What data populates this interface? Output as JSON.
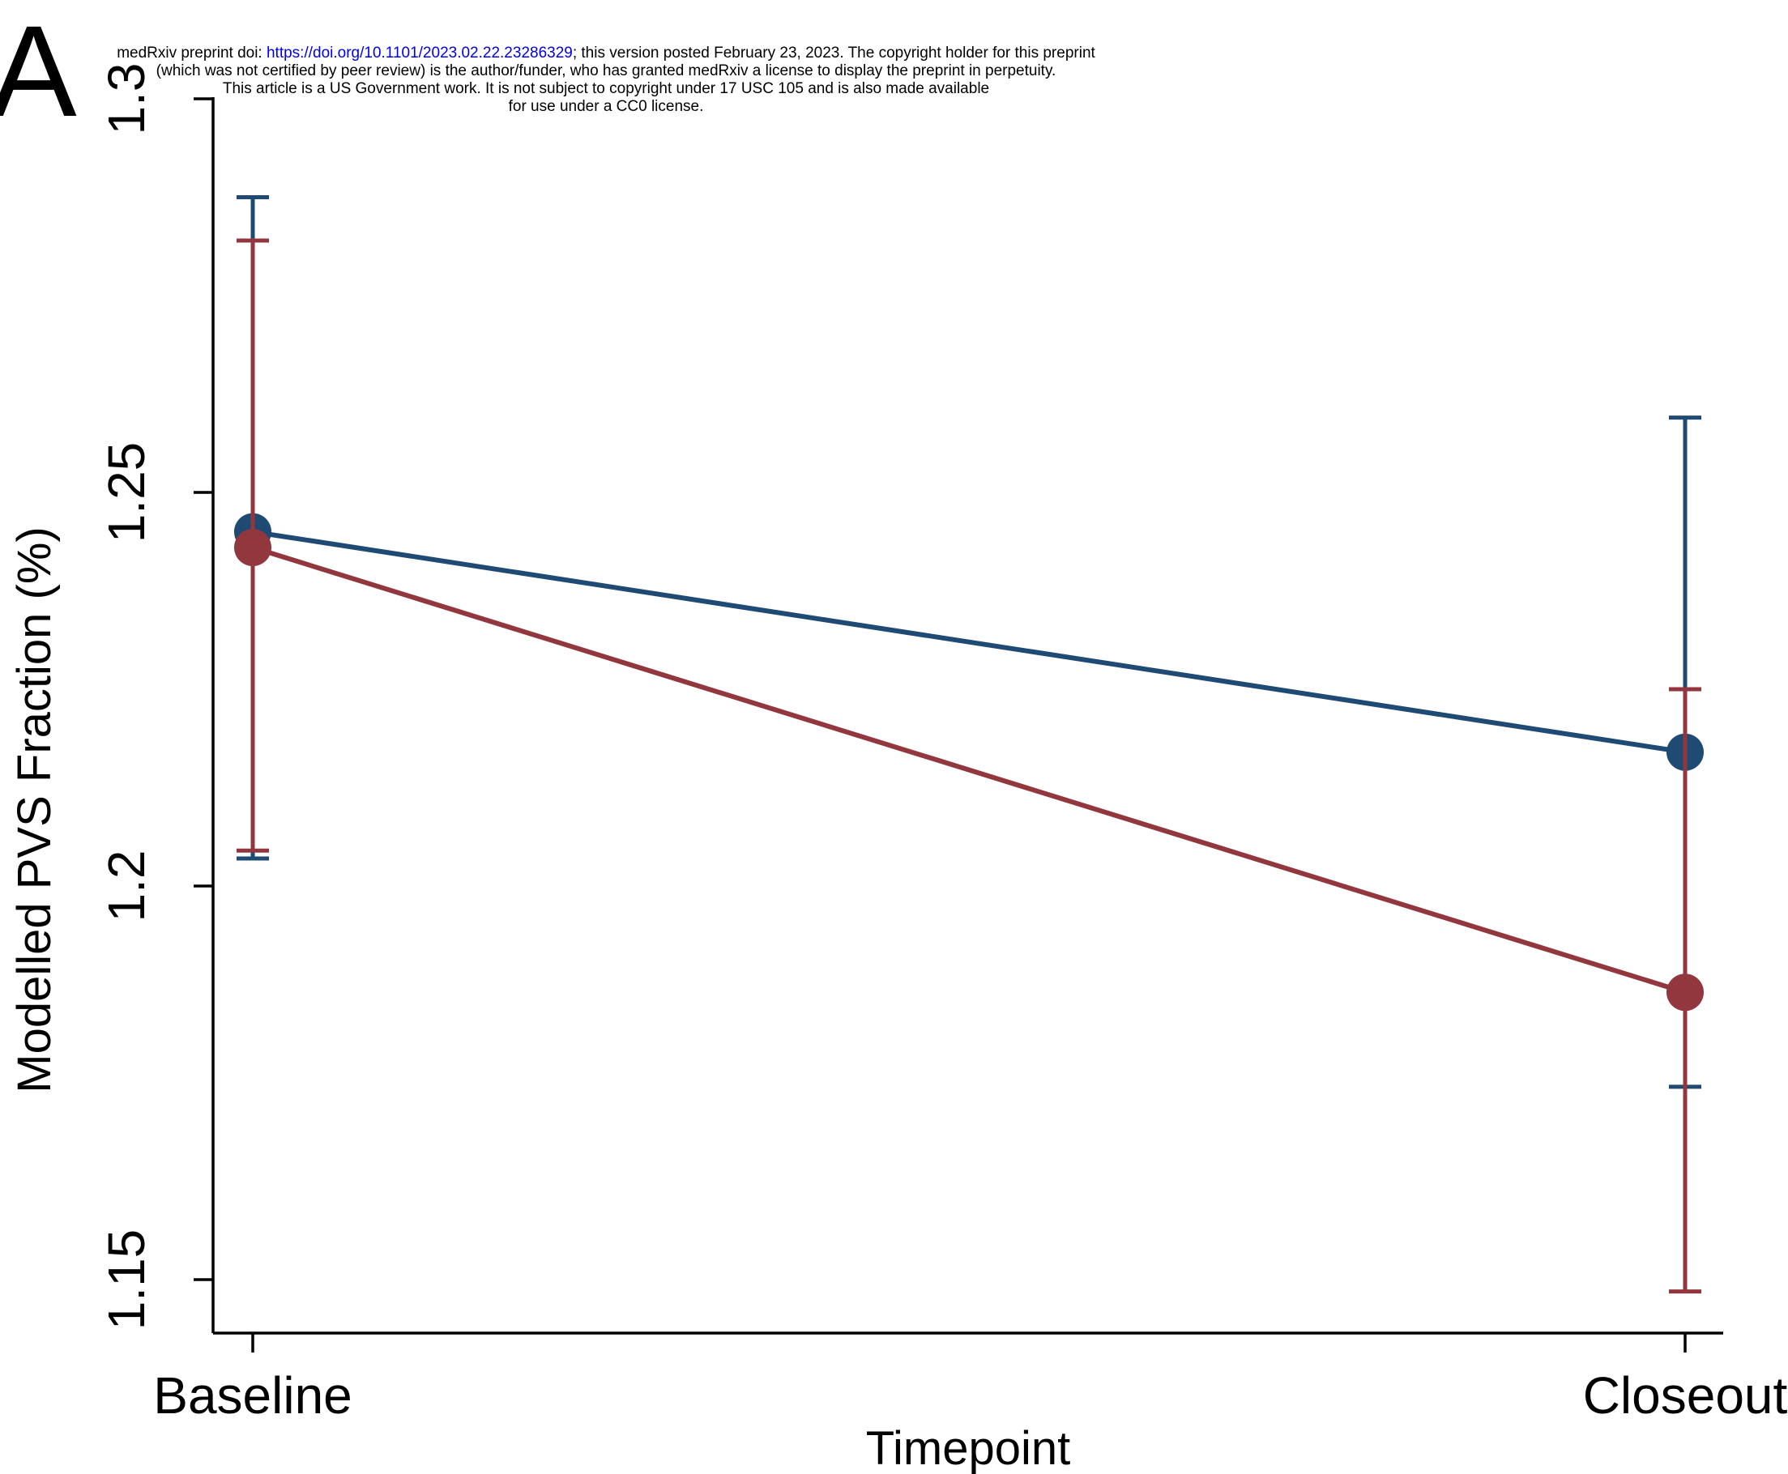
{
  "panel_label": "A",
  "preprint_notice": {
    "line1_prefix": "medRxiv preprint doi: ",
    "line1_link": "https://doi.org/10.1101/2023.02.22.23286329",
    "line1_suffix": "; this version posted February 23, 2023. The copyright holder for this preprint",
    "line2": "(which was not certified by peer review) is the author/funder, who has granted medRxiv a license to display the preprint in perpetuity.",
    "line3": "This article is a US Government work. It is not subject to copyright under 17 USC 105 and is also made available",
    "line4": "for use under a CC0 license."
  },
  "chart_data": {
    "type": "line",
    "xlabel": "Timepoint",
    "ylabel": "Modelled PVS Fraction (%)",
    "categories": [
      "Baseline",
      "Closeout"
    ],
    "ylim": [
      1.143,
      1.3
    ],
    "yticks": [
      1.15,
      1.2,
      1.25,
      1.3
    ],
    "ytick_labels": [
      "1.15",
      "1.2",
      "1.25",
      "1.3"
    ],
    "grid": false,
    "series": [
      {
        "color": "#1f4a73",
        "values": [
          1.245,
          1.217
        ],
        "ci_low": [
          1.2035,
          1.1745
        ],
        "ci_high": [
          1.2875,
          1.2595
        ]
      },
      {
        "color": "#93373f",
        "values": [
          1.243,
          1.1865
        ],
        "ci_low": [
          1.2045,
          1.1485
        ],
        "ci_high": [
          1.282,
          1.225
        ]
      }
    ]
  }
}
